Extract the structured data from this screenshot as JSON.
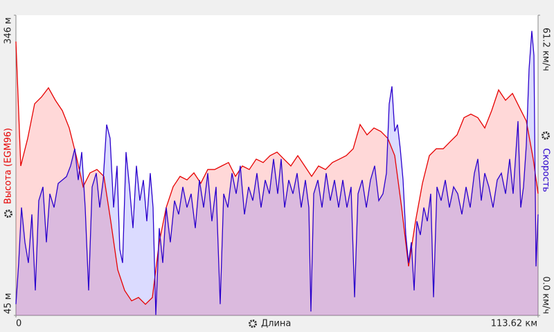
{
  "chart_data": {
    "type": "area",
    "xlabel": "Длина",
    "xlim": [
      0,
      113.62
    ],
    "xticks": [
      0,
      {
        "value": 113.62,
        "label": "113.62 км"
      }
    ],
    "ylim": [
      45,
      346
    ],
    "yticks": [
      {
        "value": 346,
        "label": "346 м"
      },
      {
        "value": 45,
        "label": "45 м"
      }
    ],
    "y2lim": [
      0,
      61.2
    ],
    "y2ticks": [
      {
        "value": 61.2,
        "label": "61.2 км/ч"
      },
      {
        "value": 0,
        "label": "0.0 км/ч"
      }
    ],
    "grid": false,
    "series": [
      {
        "name": "Высота (EGM96)",
        "color": "#e60000",
        "fill": "rgba(255,60,60,0.2)",
        "x": [
          0,
          1.05,
          2.56,
          4.07,
          5.58,
          7.08,
          8.59,
          10.1,
          11.6,
          13.11,
          14.62,
          16.12,
          17.63,
          19.14,
          20.64,
          22.15,
          23.66,
          25.17,
          26.67,
          28.18,
          29.69,
          31.19,
          32.7,
          34.21,
          35.71,
          37.22,
          38.73,
          40.23,
          41.74,
          43.25,
          44.75,
          46.26,
          47.77,
          49.28,
          50.78,
          52.29,
          53.8,
          55.3,
          56.81,
          58.32,
          59.82,
          61.33,
          62.84,
          64.34,
          65.85,
          67.36,
          68.87,
          70.37,
          71.88,
          73.39,
          74.89,
          76.4,
          77.91,
          79.41,
          80.92,
          82.43,
          83.93,
          85.44,
          86.95,
          88.46,
          89.96,
          91.47,
          92.98,
          94.48,
          95.99,
          97.5,
          99.0,
          100.51,
          102.02,
          103.52,
          105.03,
          106.54,
          108.05,
          109.55,
          111.06,
          112.57,
          113.62
        ],
        "values": [
          319.6,
          194.8,
          222.5,
          257.2,
          264.1,
          273.2,
          260.7,
          250.3,
          232.9,
          205.2,
          174.0,
          187.9,
          191.3,
          184.4,
          139.3,
          90.8,
          70.0,
          59.6,
          63.0,
          56.1,
          63.0,
          118.5,
          153.2,
          174.0,
          184.4,
          180.9,
          187.9,
          177.5,
          191.3,
          191.3,
          194.8,
          198.3,
          184.4,
          194.8,
          191.3,
          201.7,
          198.3,
          205.2,
          208.7,
          201.7,
          194.8,
          205.2,
          194.8,
          184.4,
          194.8,
          191.3,
          198.3,
          201.7,
          205.2,
          212.1,
          236.4,
          226.0,
          232.9,
          229.5,
          222.5,
          205.2,
          153.2,
          94.2,
          139.3,
          177.5,
          205.2,
          212.1,
          212.1,
          219.1,
          226.0,
          243.3,
          246.8,
          243.3,
          232.9,
          250.3,
          271.1,
          260.7,
          267.6,
          253.7,
          239.9,
          201.7,
          167.1
        ]
      },
      {
        "name": "Скорость",
        "color": "#2a00cc",
        "fill": "rgba(40,40,255,0.17)",
        "axis": "y2",
        "x": [
          0,
          0.6,
          1.21,
          1.96,
          2.71,
          3.47,
          4.22,
          4.97,
          5.88,
          6.63,
          7.38,
          8.29,
          9.19,
          10.1,
          11.0,
          11.9,
          12.81,
          13.56,
          14.32,
          15.07,
          15.82,
          16.58,
          17.48,
          18.23,
          18.99,
          19.74,
          20.49,
          21.25,
          22.0,
          22.6,
          23.21,
          23.96,
          24.71,
          25.47,
          26.22,
          26.97,
          27.73,
          28.48,
          29.23,
          29.84,
          30.44,
          31.19,
          31.95,
          32.7,
          33.6,
          34.51,
          35.41,
          36.32,
          37.22,
          38.12,
          39.03,
          39.93,
          40.84,
          41.74,
          42.64,
          43.55,
          44.45,
          45.21,
          46.11,
          47.02,
          47.92,
          48.82,
          49.73,
          50.63,
          51.54,
          52.44,
          53.34,
          54.25,
          55.15,
          56.06,
          56.96,
          57.71,
          58.47,
          59.37,
          60.28,
          61.18,
          62.08,
          62.99,
          63.74,
          64.19,
          64.8,
          65.7,
          66.6,
          67.51,
          68.41,
          69.32,
          70.22,
          71.13,
          72.03,
          72.93,
          73.69,
          74.44,
          75.35,
          76.25,
          77.15,
          78.06,
          78.96,
          79.87,
          80.62,
          81.22,
          81.82,
          82.43,
          83.03,
          83.63,
          84.24,
          84.84,
          85.44,
          86.04,
          86.65,
          87.25,
          88.0,
          88.76,
          89.51,
          90.26,
          90.87,
          91.62,
          92.52,
          93.43,
          94.33,
          95.24,
          96.14,
          97.04,
          97.95,
          98.85,
          99.76,
          100.51,
          101.26,
          102.02,
          102.92,
          103.82,
          104.73,
          105.63,
          106.54,
          107.44,
          108.19,
          108.8,
          109.25,
          109.85,
          110.45,
          111.06,
          111.66,
          112.26,
          112.72,
          113.17,
          113.62
        ],
        "values": [
          2.3,
          10.7,
          22.0,
          14.9,
          10.7,
          20.6,
          5.1,
          23.4,
          26.2,
          14.9,
          24.8,
          22.0,
          26.9,
          27.6,
          28.3,
          30.5,
          34.0,
          27.6,
          33.3,
          22.0,
          5.1,
          26.2,
          29.0,
          22.0,
          27.6,
          38.9,
          36.1,
          22.0,
          30.5,
          13.5,
          10.7,
          33.3,
          26.2,
          17.8,
          30.5,
          23.4,
          27.6,
          19.2,
          29.0,
          22.0,
          0.1,
          17.8,
          10.7,
          22.0,
          14.9,
          23.4,
          20.6,
          26.2,
          22.0,
          24.8,
          17.8,
          27.6,
          22.0,
          29.0,
          19.2,
          26.2,
          2.3,
          24.8,
          22.0,
          29.0,
          24.8,
          30.5,
          20.6,
          26.2,
          23.4,
          29.0,
          22.0,
          27.6,
          24.8,
          31.9,
          24.8,
          31.9,
          22.0,
          27.6,
          24.8,
          29.0,
          22.0,
          27.6,
          22.0,
          0.8,
          24.8,
          27.6,
          22.0,
          29.0,
          23.4,
          27.6,
          22.0,
          27.6,
          22.0,
          26.2,
          3.7,
          24.8,
          27.6,
          22.0,
          27.6,
          30.5,
          23.4,
          24.8,
          29.0,
          43.1,
          46.7,
          37.5,
          38.9,
          34.0,
          27.6,
          16.4,
          10.7,
          14.9,
          5.1,
          19.2,
          16.4,
          22.0,
          19.2,
          24.8,
          3.7,
          26.2,
          23.4,
          27.6,
          22.0,
          26.2,
          24.8,
          20.6,
          26.2,
          22.0,
          29.0,
          31.9,
          23.4,
          29.0,
          26.2,
          22.0,
          27.6,
          29.0,
          24.8,
          31.9,
          24.8,
          33.3,
          39.6,
          22.0,
          26.2,
          34.7,
          50.2,
          58.0,
          53.0,
          10.0,
          20.6
        ]
      }
    ]
  }
}
